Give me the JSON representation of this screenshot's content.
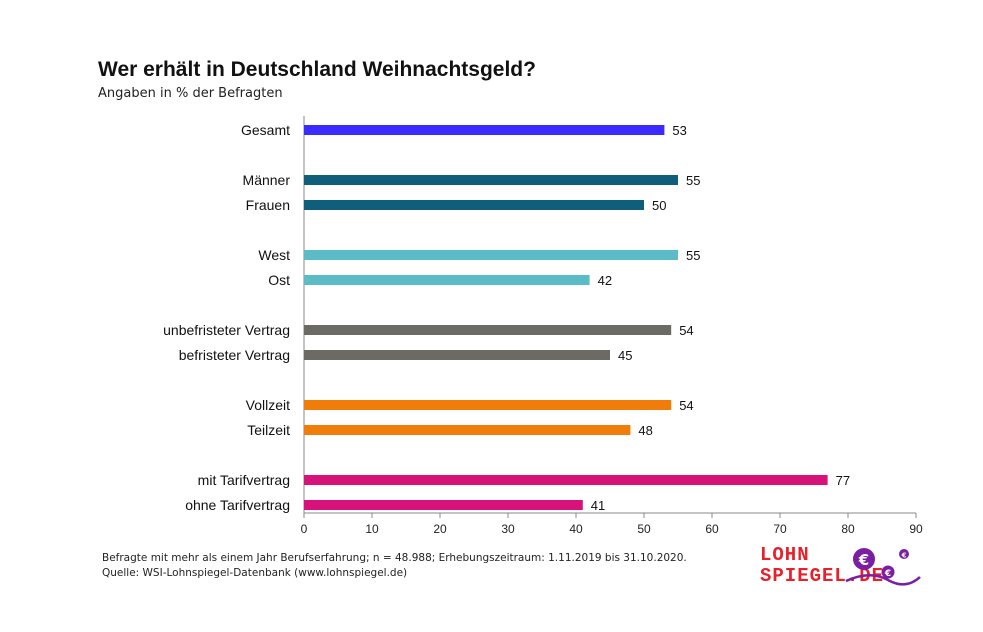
{
  "title": "Wer erhält in Deutschland Weihnachtsgeld?",
  "subtitle": "Angaben in % der Befragten",
  "footnote": {
    "line1": "Befragte mit mehr als einem Jahr Berufserfahrung; n = 48.988; Erhebungszeitraum: 1.11.2019 bis 31.10.2020.",
    "line2": "Quelle: WSI-Lohnspiegel-Datenbank  (www.lohnspiegel.de)"
  },
  "logo": {
    "line1": "LOHN",
    "line2": "SPIEGEL.DE",
    "color": "#e8202a",
    "accent": "#7a1fa2",
    "icon": "euro-coins-icon"
  },
  "chart_data": {
    "type": "bar",
    "orientation": "horizontal",
    "categories": [
      "Gesamt",
      "Männer",
      "Frauen",
      "West",
      "Ost",
      "unbefristeter Vertrag",
      "befristeter Vertrag",
      "Vollzeit",
      "Teilzeit",
      "mit Tarifvertrag",
      "ohne Tarifvertrag"
    ],
    "values": [
      53,
      55,
      50,
      55,
      42,
      54,
      45,
      54,
      48,
      77,
      41
    ],
    "colors": [
      "#3b2bff",
      "#0f5f7a",
      "#0f5f7a",
      "#5bbcc8",
      "#5bbcc8",
      "#6b6b64",
      "#6b6b64",
      "#f07d0a",
      "#f07d0a",
      "#d7127a",
      "#d7127a"
    ],
    "groups": [
      [
        0
      ],
      [
        1,
        2
      ],
      [
        3,
        4
      ],
      [
        5,
        6
      ],
      [
        7,
        8
      ],
      [
        9,
        10
      ]
    ],
    "xlim": [
      0,
      90
    ],
    "xticks": [
      0,
      10,
      20,
      30,
      40,
      50,
      60,
      70,
      80,
      90
    ],
    "grid": false,
    "data_labels": true
  }
}
